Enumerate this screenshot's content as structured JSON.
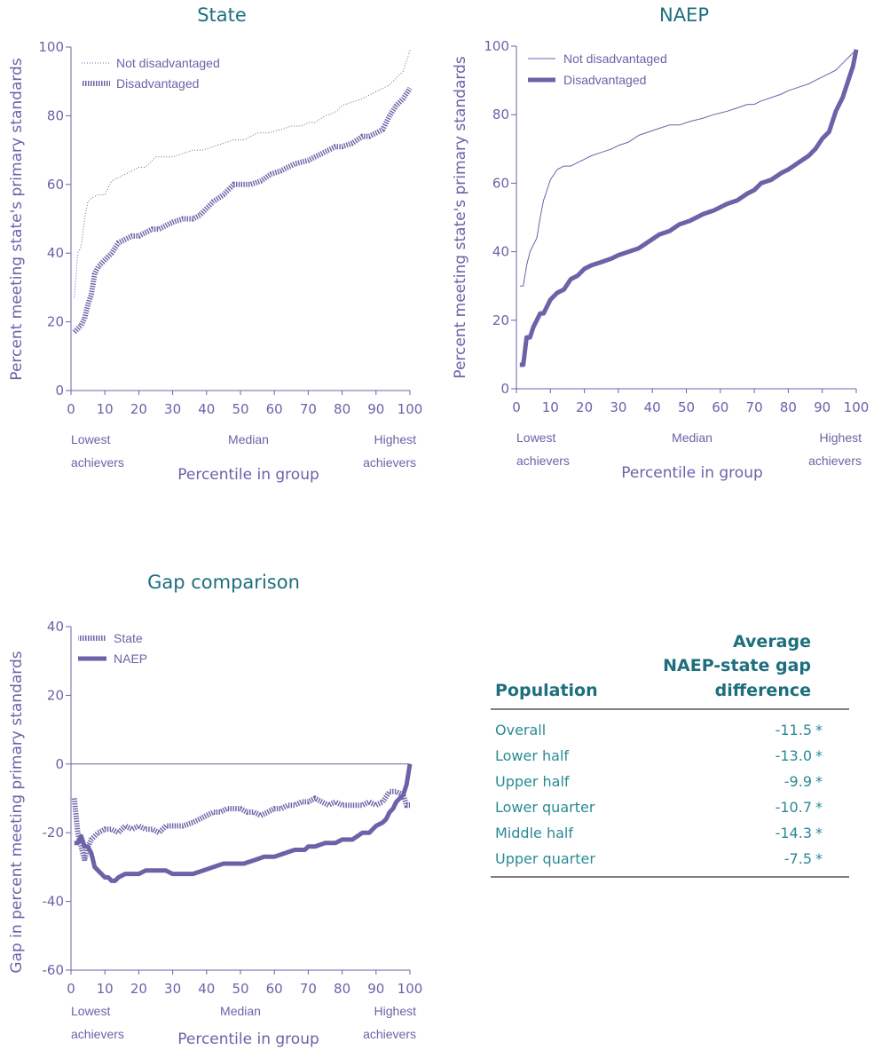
{
  "colors": {
    "title": "#1d6f7d",
    "series": "#6a63a8",
    "table_text": "#2a8a94"
  },
  "chart_data": [
    {
      "type": "line",
      "title": "State",
      "xlabel": "Percentile in group",
      "ylabel": "Percent meeting state's primary standards",
      "xlim": [
        0,
        100
      ],
      "ylim": [
        0,
        100
      ],
      "xticks": [
        "0",
        "10",
        "20",
        "30",
        "40",
        "50",
        "60",
        "70",
        "80",
        "90",
        "100"
      ],
      "yticks": [
        "0",
        "20",
        "40",
        "60",
        "80",
        "100"
      ],
      "notes": {
        "low1": "Lowest",
        "low2": "achievers",
        "mid": "Median",
        "high1": "Highest",
        "high2": "achievers"
      },
      "series": [
        {
          "name": "Not disadvantaged",
          "style": "dotted",
          "x": [
            1,
            2,
            3,
            4,
            5,
            6,
            8,
            10,
            12,
            14,
            16,
            18,
            20,
            22,
            25,
            28,
            30,
            33,
            36,
            39,
            42,
            45,
            48,
            51,
            55,
            58,
            62,
            65,
            68,
            70,
            72,
            75,
            78,
            80,
            83,
            86,
            88,
            90,
            92,
            94,
            96,
            98,
            99,
            100
          ],
          "y": [
            27,
            40,
            42,
            50,
            55,
            56,
            57,
            57,
            61,
            62,
            63,
            64,
            65,
            65,
            68,
            68,
            68,
            69,
            70,
            70,
            71,
            72,
            73,
            73,
            75,
            75,
            76,
            77,
            77,
            78,
            78,
            80,
            81,
            83,
            84,
            85,
            86,
            87,
            88,
            89,
            91,
            93,
            96,
            99
          ]
        },
        {
          "name": "Disadvantaged",
          "style": "hatched",
          "x": [
            1,
            2,
            3,
            4,
            5,
            6,
            7,
            8,
            10,
            12,
            14,
            16,
            18,
            20,
            22,
            24,
            26,
            28,
            30,
            33,
            36,
            38,
            40,
            42,
            45,
            48,
            50,
            53,
            56,
            59,
            62,
            64,
            66,
            70,
            72,
            74,
            76,
            78,
            80,
            83,
            86,
            88,
            90,
            92,
            94,
            96,
            98,
            100
          ],
          "y": [
            17,
            18,
            19,
            21,
            25,
            28,
            34,
            36,
            38,
            40,
            43,
            44,
            45,
            45,
            46,
            47,
            47,
            48,
            49,
            50,
            50,
            51,
            53,
            55,
            57,
            60,
            60,
            60,
            61,
            63,
            64,
            65,
            66,
            67,
            68,
            69,
            70,
            71,
            71,
            72,
            74,
            74,
            75,
            76,
            80,
            83,
            85,
            88
          ]
        }
      ]
    },
    {
      "type": "line",
      "title": "NAEP",
      "xlabel": "Percentile in group",
      "ylabel": "Percent meeting state's primary standards",
      "xlim": [
        0,
        100
      ],
      "ylim": [
        0,
        100
      ],
      "xticks": [
        "0",
        "10",
        "20",
        "30",
        "40",
        "50",
        "60",
        "70",
        "80",
        "90",
        "100"
      ],
      "yticks": [
        "0",
        "20",
        "40",
        "60",
        "80",
        "100"
      ],
      "notes": {
        "low1": "Lowest",
        "low2": "achievers",
        "mid": "Median",
        "high1": "Highest",
        "high2": "achievers"
      },
      "series": [
        {
          "name": "Not disadvantaged",
          "style": "thin",
          "x": [
            1,
            2,
            3,
            4,
            5,
            6,
            7,
            8,
            9,
            10,
            12,
            14,
            16,
            18,
            20,
            22,
            25,
            28,
            30,
            33,
            36,
            39,
            42,
            45,
            48,
            51,
            55,
            58,
            62,
            65,
            68,
            70,
            72,
            75,
            78,
            80,
            83,
            86,
            88,
            90,
            92,
            94,
            96,
            98,
            99,
            100
          ],
          "y": [
            30,
            30,
            36,
            40,
            42,
            44,
            50,
            55,
            58,
            61,
            64,
            65,
            65,
            66,
            67,
            68,
            69,
            70,
            71,
            72,
            74,
            75,
            76,
            77,
            77,
            78,
            79,
            80,
            81,
            82,
            83,
            83,
            84,
            85,
            86,
            87,
            88,
            89,
            90,
            91,
            92,
            93,
            95,
            97,
            98,
            99
          ]
        },
        {
          "name": "Disadvantaged",
          "style": "thick",
          "x": [
            1,
            2,
            3,
            4,
            5,
            6,
            7,
            8,
            10,
            12,
            14,
            16,
            18,
            20,
            22,
            25,
            28,
            30,
            33,
            36,
            39,
            42,
            45,
            48,
            51,
            55,
            58,
            62,
            65,
            68,
            70,
            72,
            75,
            78,
            80,
            83,
            86,
            88,
            90,
            92,
            93,
            94,
            95,
            96,
            97,
            98,
            99,
            100
          ],
          "y": [
            7,
            7,
            15,
            15,
            18,
            20,
            22,
            22,
            26,
            28,
            29,
            32,
            33,
            35,
            36,
            37,
            38,
            39,
            40,
            41,
            43,
            45,
            46,
            48,
            49,
            51,
            52,
            54,
            55,
            57,
            58,
            60,
            61,
            63,
            64,
            66,
            68,
            70,
            73,
            75,
            78,
            81,
            83,
            85,
            88,
            91,
            94,
            99
          ]
        }
      ]
    },
    {
      "type": "line",
      "title": "Gap comparison",
      "xlabel": "Percentile in group",
      "ylabel": "Gap in percent meeting primary standards",
      "xlim": [
        0,
        100
      ],
      "ylim": [
        -60,
        40
      ],
      "xticks": [
        "0",
        "10",
        "20",
        "30",
        "40",
        "50",
        "60",
        "70",
        "80",
        "90",
        "100"
      ],
      "yticks": [
        "-60",
        "-40",
        "-20",
        "0",
        "20",
        "40"
      ],
      "notes": {
        "low1": "Lowest",
        "low2": "achievers",
        "mid": "Median",
        "high1": "Highest",
        "high2": "achievers"
      },
      "series": [
        {
          "name": "State",
          "style": "hatched",
          "x": [
            1,
            2,
            3,
            4,
            5,
            6,
            7,
            8,
            10,
            12,
            14,
            16,
            18,
            20,
            22,
            24,
            26,
            28,
            30,
            33,
            36,
            38,
            40,
            42,
            44,
            46,
            48,
            50,
            52,
            54,
            56,
            58,
            60,
            62,
            64,
            66,
            68,
            70,
            72,
            74,
            76,
            78,
            80,
            82,
            84,
            86,
            88,
            90,
            92,
            94,
            96,
            98,
            99,
            100
          ],
          "y": [
            -10,
            -20,
            -24,
            -28,
            -24,
            -22,
            -21,
            -20,
            -19,
            -19,
            -20,
            -18,
            -19,
            -18,
            -19,
            -19,
            -20,
            -18,
            -18,
            -18,
            -17,
            -16,
            -15,
            -14,
            -14,
            -13,
            -13,
            -13,
            -14,
            -14,
            -15,
            -14,
            -13,
            -13,
            -12,
            -12,
            -11,
            -11,
            -10,
            -11,
            -12,
            -11,
            -12,
            -12,
            -12,
            -12,
            -11,
            -12,
            -11,
            -8,
            -8,
            -9,
            -12,
            -12
          ]
        },
        {
          "name": "NAEP",
          "style": "thick",
          "x": [
            1,
            2,
            3,
            4,
            5,
            6,
            7,
            8,
            9,
            10,
            11,
            12,
            13,
            14,
            16,
            18,
            20,
            22,
            25,
            28,
            30,
            33,
            36,
            39,
            42,
            45,
            48,
            51,
            54,
            57,
            60,
            63,
            66,
            69,
            70,
            72,
            75,
            78,
            80,
            83,
            86,
            88,
            90,
            92,
            93,
            94,
            95,
            96,
            97,
            98,
            99,
            100
          ],
          "y": [
            -23,
            -23,
            -21,
            -24,
            -24,
            -26,
            -30,
            -31,
            -32,
            -33,
            -33,
            -34,
            -34,
            -33,
            -32,
            -32,
            -32,
            -31,
            -31,
            -31,
            -32,
            -32,
            -32,
            -31,
            -30,
            -29,
            -29,
            -29,
            -28,
            -27,
            -27,
            -26,
            -25,
            -25,
            -24,
            -24,
            -23,
            -23,
            -22,
            -22,
            -20,
            -20,
            -18,
            -17,
            -16,
            -14,
            -13,
            -11,
            -10,
            -9,
            -6,
            0
          ]
        }
      ]
    }
  ],
  "table": {
    "header": {
      "col1": "Population",
      "col2_l1": "Average",
      "col2_l2": "NAEP-state gap",
      "col2_l3": "difference"
    },
    "rows": [
      {
        "label": "Overall",
        "value": "-11.5",
        "sig": "*"
      },
      {
        "label": "Lower half",
        "value": "-13.0",
        "sig": "*"
      },
      {
        "label": "Upper half",
        "value": "-9.9",
        "sig": "*"
      },
      {
        "label": "Lower quarter",
        "value": "-10.7",
        "sig": "*"
      },
      {
        "label": "Middle half",
        "value": "-14.3",
        "sig": "*"
      },
      {
        "label": "Upper quarter",
        "value": "-7.5",
        "sig": "*"
      }
    ]
  }
}
